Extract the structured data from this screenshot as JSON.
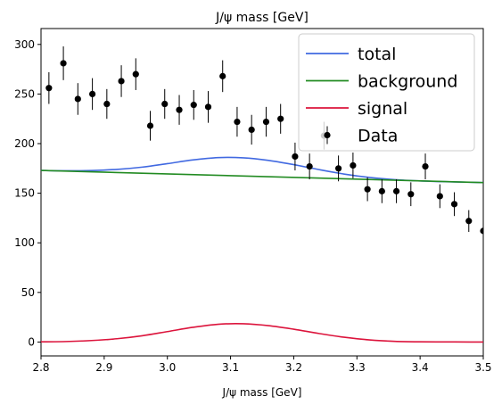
{
  "chart_data": {
    "type": "scatter",
    "title": "J/ψ mass [GeV]",
    "xlabel": "J/ψ mass [GeV]",
    "ylabel": "",
    "xlim": [
      2.8,
      3.5
    ],
    "ylim": [
      -14,
      316
    ],
    "xticks": [
      "2.8",
      "2.9",
      "3.0",
      "3.1",
      "3.2",
      "3.3",
      "3.4",
      "3.5"
    ],
    "xtick_values": [
      2.8,
      2.9,
      3.0,
      3.1,
      3.2,
      3.3,
      3.4,
      3.5
    ],
    "yticks": [
      "0",
      "50",
      "100",
      "150",
      "200",
      "250",
      "300"
    ],
    "ytick_values": [
      0,
      50,
      100,
      150,
      200,
      250,
      300
    ],
    "grid": false,
    "legend_position": "top-right",
    "legend": [
      {
        "label": "total",
        "color": "#4169e1",
        "kind": "line"
      },
      {
        "label": "background",
        "color": "#228b22",
        "kind": "line"
      },
      {
        "label": "signal",
        "color": "#dc143c",
        "kind": "line"
      },
      {
        "label": "Data",
        "color": "#000000",
        "kind": "marker"
      }
    ],
    "series": [
      {
        "name": "total",
        "color": "#4169e1",
        "x": [
          2.8,
          2.84,
          2.88,
          2.92,
          2.96,
          3.0,
          3.04,
          3.08,
          3.12,
          3.16,
          3.2,
          3.24,
          3.28,
          3.32,
          3.36,
          3.4,
          3.44,
          3.48,
          3.5
        ],
        "y": [
          173.0,
          172.6,
          172.9,
          174.0,
          176.3,
          179.8,
          183.5,
          185.9,
          185.7,
          183.1,
          178.8,
          173.8,
          169.3,
          165.9,
          163.7,
          162.4,
          161.6,
          161.0,
          160.7
        ]
      },
      {
        "name": "background",
        "color": "#228b22",
        "x": [
          2.8,
          3.5
        ],
        "y": [
          173.0,
          160.7
        ]
      },
      {
        "name": "signal",
        "color": "#dc143c",
        "x": [
          2.8,
          2.84,
          2.88,
          2.92,
          2.96,
          3.0,
          3.04,
          3.08,
          3.12,
          3.16,
          3.2,
          3.24,
          3.28,
          3.32,
          3.36,
          3.4,
          3.44,
          3.48,
          3.5
        ],
        "y": [
          0.2,
          0.5,
          1.5,
          3.3,
          6.3,
          10.5,
          14.8,
          17.9,
          18.4,
          16.5,
          12.9,
          8.6,
          4.8,
          2.1,
          0.7,
          0.2,
          0.1,
          0.0,
          0.0
        ]
      },
      {
        "name": "Data",
        "color": "#000000",
        "x": [
          2.8125,
          2.8354,
          2.8583,
          2.8813,
          2.9042,
          2.9271,
          2.95,
          2.9729,
          2.9958,
          3.0188,
          3.0417,
          3.0646,
          3.0875,
          3.1104,
          3.1333,
          3.1563,
          3.1792,
          3.2021,
          3.225,
          3.2479,
          3.2708,
          3.2938,
          3.3167,
          3.3396,
          3.3625,
          3.3854,
          3.4083,
          3.4313,
          3.4542,
          3.4771,
          3.5
        ],
        "y": [
          256,
          281,
          245,
          250,
          240,
          263,
          270,
          218,
          240,
          234,
          239,
          237,
          268,
          222,
          214,
          222,
          225,
          187,
          177,
          208,
          175,
          178,
          154,
          152,
          152,
          149,
          177,
          147,
          139,
          122,
          112
        ],
        "yerr": [
          16,
          17,
          16,
          16,
          15,
          16,
          16,
          15,
          15,
          15,
          15,
          16,
          16,
          15,
          15,
          15,
          15,
          14,
          13,
          14,
          13,
          13,
          12,
          12,
          12,
          12,
          13,
          12,
          12,
          11,
          11
        ]
      }
    ]
  }
}
